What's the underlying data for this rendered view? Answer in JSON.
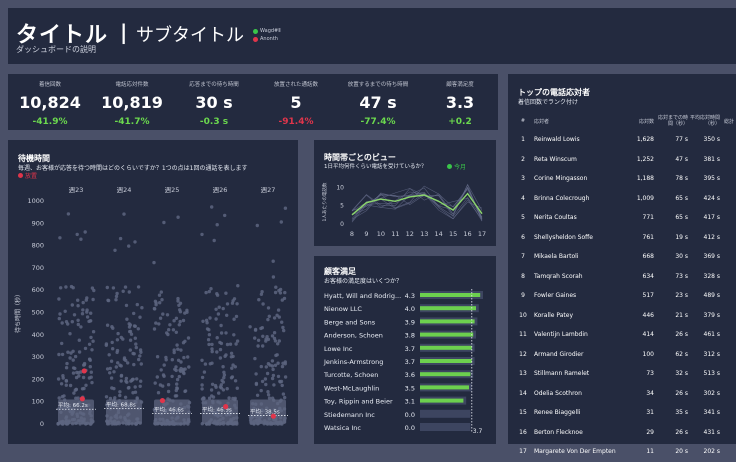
{
  "header": {
    "title": "タイトル",
    "separator": "|",
    "subtitle": "サブタイトル",
    "description": "ダッシュボードの説明",
    "legend": [
      {
        "label": "Wagd#Ⅱ",
        "color": "#3ac54a"
      },
      {
        "label": "Anonth",
        "color": "#e0354b"
      }
    ]
  },
  "kpis": [
    {
      "label": "着信回数",
      "value": "10,824",
      "delta": "-41.9%",
      "delta_color": "#6bd84e"
    },
    {
      "label": "電話応対件数",
      "value": "10,819",
      "delta": "-41.7%",
      "delta_color": "#6bd84e"
    },
    {
      "label": "応答までの待ち時間",
      "value": "30 s",
      "delta": "-0.3 s",
      "delta_color": "#6bd84e"
    },
    {
      "label": "放置された通話数",
      "value": "5",
      "delta": "-91.4%",
      "delta_color": "#e0354b"
    },
    {
      "label": "放置するまでの待ち時間",
      "value": "47 s",
      "delta": "-77.4%",
      "delta_color": "#6bd84e"
    },
    {
      "label": "顧客満足度",
      "value": "3.3",
      "delta": "+0.2",
      "delta_color": "#6bd84e"
    }
  ],
  "wait_panel": {
    "title": "待機時間",
    "subtitle": "毎週、お客様が応答を待つ時間はどのくらいですか？1つの点は1回の通話を表します",
    "legend_label": "放置",
    "legend_color": "#e0354b"
  },
  "timeofday_panel": {
    "title": "時間帯ごとのビュー",
    "subtitle": "1日平均何件くらい電話を受けているか？",
    "legend_label": "今月",
    "legend_color": "#3ac54a"
  },
  "csat_panel": {
    "title": "顧客満足",
    "subtitle": "お客様の満足度はいくつか？"
  },
  "top_panel": {
    "title": "トップの電話応対者",
    "subtitle": "着信回数でランク付け",
    "columns": [
      "#",
      "応対者",
      "応対数",
      "応対までの時間（秒）",
      "平均応対時間（秒）",
      "総計"
    ],
    "rows": [
      {
        "rank": "1",
        "name": "Reinwald Lowis",
        "count": "1,628",
        "wait": "77 s",
        "avg": "350 s"
      },
      {
        "rank": "2",
        "name": "Reta Winscum",
        "count": "1,252",
        "wait": "47 s",
        "avg": "381 s"
      },
      {
        "rank": "3",
        "name": "Corine Mingasson",
        "count": "1,188",
        "wait": "78 s",
        "avg": "395 s"
      },
      {
        "rank": "4",
        "name": "Brinna Colecrough",
        "count": "1,009",
        "wait": "65 s",
        "avg": "424 s"
      },
      {
        "rank": "5",
        "name": "Nerita Coultas",
        "count": "771",
        "wait": "65 s",
        "avg": "417 s"
      },
      {
        "rank": "6",
        "name": "Shellysheldon Soffe",
        "count": "761",
        "wait": "19 s",
        "avg": "412 s"
      },
      {
        "rank": "7",
        "name": "Mikaela Bartoli",
        "count": "668",
        "wait": "30 s",
        "avg": "369 s"
      },
      {
        "rank": "8",
        "name": "Tamqrah Scorah",
        "count": "634",
        "wait": "73 s",
        "avg": "328 s"
      },
      {
        "rank": "9",
        "name": "Fowler Gaines",
        "count": "517",
        "wait": "23 s",
        "avg": "489 s"
      },
      {
        "rank": "10",
        "name": "Koralle Patey",
        "count": "446",
        "wait": "21 s",
        "avg": "379 s"
      },
      {
        "rank": "11",
        "name": "Valentijn Lambdin",
        "count": "414",
        "wait": "26 s",
        "avg": "461 s"
      },
      {
        "rank": "12",
        "name": "Armand Girodier",
        "count": "100",
        "wait": "62 s",
        "avg": "312 s"
      },
      {
        "rank": "13",
        "name": "Stillmann Ramelet",
        "count": "73",
        "wait": "32 s",
        "avg": "513 s"
      },
      {
        "rank": "14",
        "name": "Odelia Scothron",
        "count": "34",
        "wait": "26 s",
        "avg": "302 s"
      },
      {
        "rank": "15",
        "name": "Renee Biaggelli",
        "count": "31",
        "wait": "35 s",
        "avg": "341 s"
      },
      {
        "rank": "16",
        "name": "Berton Flecknoe",
        "count": "29",
        "wait": "26 s",
        "avg": "431 s"
      },
      {
        "rank": "17",
        "name": "Margarete Von Der Empten",
        "count": "11",
        "wait": "20 s",
        "avg": "202 s"
      }
    ]
  },
  "chart_data": [
    {
      "type": "scatter",
      "title": "待機時間",
      "ylabel": "待ち時間（秒）",
      "categories": [
        "週23",
        "週24",
        "週25",
        "週26",
        "週27"
      ],
      "ylim": [
        0,
        1000
      ],
      "yticks": [
        0,
        100,
        200,
        300,
        400,
        500,
        600,
        700,
        800,
        900,
        1000
      ],
      "averages": [
        {
          "label": "平均: 66.2s",
          "value": 66.2
        },
        {
          "label": "平均: 68.8s",
          "value": 68.8
        },
        {
          "label": "平均: 46.6s",
          "value": 46.6
        },
        {
          "label": "平均: 46.9s",
          "value": 46.9
        },
        {
          "label": "平均: 38.5s",
          "value": 38.5
        }
      ],
      "abandoned_points": [
        {
          "week": 0,
          "value": 113
        },
        {
          "week": 0,
          "value": 238
        },
        {
          "week": 2,
          "value": 105
        },
        {
          "week": 3,
          "value": 78
        },
        {
          "week": 4,
          "value": 35
        }
      ]
    },
    {
      "type": "line",
      "title": "時間帯ごとのビュー",
      "ylabel": "1人あたりの電話数",
      "x": [
        8,
        9,
        10,
        11,
        12,
        13,
        14,
        15,
        16,
        17
      ],
      "ylim": [
        0,
        12
      ],
      "yticks": [
        0,
        5,
        10
      ],
      "series": [
        {
          "name": "今月",
          "values": [
            2.5,
            5.8,
            6.8,
            6.2,
            7.4,
            7.9,
            6.2,
            3.8,
            8.3,
            2.8
          ]
        }
      ]
    },
    {
      "type": "bar",
      "title": "顧客満足",
      "categories": [
        "Hyatt, Will and Rodrig...",
        "Nienow LLC",
        "Berge and Sons",
        "Anderson, Schoen",
        "Lowe Inc",
        "Jenkins-Armstrong",
        "Turcotte, Schoen",
        "West-McLaughlin",
        "Toy, Rippin and Beier",
        "Stiedemann Inc",
        "Watsica Inc"
      ],
      "values": [
        4.3,
        4.0,
        3.9,
        3.8,
        3.7,
        3.7,
        3.6,
        3.5,
        3.1,
        0.0,
        0.0
      ],
      "labels": [
        "4.3",
        "4.0",
        "3.9",
        "3.8",
        "3.7",
        "3.7",
        "3.6",
        "3.5",
        "3.1",
        "0.0",
        "0.0"
      ],
      "ref_label": "3.7",
      "xlim": [
        0,
        5
      ]
    }
  ]
}
